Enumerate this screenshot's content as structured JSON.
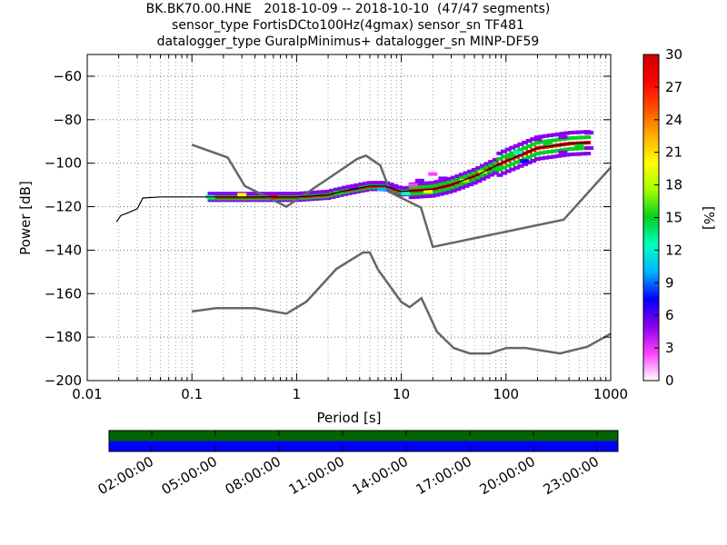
{
  "header": {
    "line1": "BK.BK70.00.HNE   2018-10-09 -- 2018-10-10  (47/47 segments)",
    "line2": "sensor_type FortisDCto100Hz(4gmax) sensor_sn TF481",
    "line3": "datalogger_type GuralpMinimus+ datalogger_sn MINP-DF59"
  },
  "chart_data": [
    {
      "type": "heatmap",
      "description_of_plot": "probabilistic power spectral density",
      "xlabel": "Period [s]",
      "ylabel": "Power [dB]",
      "xscale": "log",
      "xlim": [
        0.01,
        1000
      ],
      "ylim": [
        -200,
        -50
      ],
      "xticks": [
        {
          "value": 0.01,
          "label": "0.01"
        },
        {
          "value": 0.1,
          "label": "0.1"
        },
        {
          "value": 1,
          "label": "1"
        },
        {
          "value": 10,
          "label": "10"
        },
        {
          "value": 100,
          "label": "100"
        },
        {
          "value": 1000,
          "label": "1000"
        }
      ],
      "yticks": [
        {
          "value": -60,
          "label": "−60"
        },
        {
          "value": -80,
          "label": "−80"
        },
        {
          "value": -100,
          "label": "−100"
        },
        {
          "value": -120,
          "label": "−120"
        },
        {
          "value": -140,
          "label": "−140"
        },
        {
          "value": -160,
          "label": "−160"
        },
        {
          "value": -180,
          "label": "−180"
        },
        {
          "value": -200,
          "label": "−200"
        }
      ],
      "grid": true,
      "colorbar": {
        "label": "[%]",
        "min": 0,
        "max": 30,
        "ticks": [
          "0",
          "3",
          "6",
          "9",
          "12",
          "15",
          "18",
          "21",
          "24",
          "27",
          "30"
        ],
        "colormap": [
          "#ffffff",
          "#ff40ff",
          "#8800ee",
          "#0000ff",
          "#00b4ff",
          "#00ffc0",
          "#00d020",
          "#a0ff00",
          "#ffff00",
          "#ffb000",
          "#ff5000",
          "#ff0000",
          "#cc0000"
        ]
      },
      "reference_curves": [
        {
          "color": "#666666",
          "points": [
            [
              0.1,
              -91.5
            ],
            [
              0.22,
              -97.4
            ],
            [
              0.32,
              -110.5
            ],
            [
              0.8,
              -120
            ],
            [
              3.8,
              -98
            ],
            [
              4.6,
              -96.5
            ],
            [
              6.3,
              -101
            ],
            [
              7.9,
              -113.5
            ],
            [
              15.4,
              -120.4
            ],
            [
              20,
              -138.5
            ],
            [
              354.8,
              -126
            ],
            [
              10000,
              -48.5
            ]
          ]
        },
        {
          "color": "#666666",
          "points": [
            [
              0.1,
              -168.2
            ],
            [
              0.17,
              -166.7
            ],
            [
              0.4,
              -166.7
            ],
            [
              0.8,
              -169.2
            ],
            [
              1.24,
              -163.7
            ],
            [
              2.4,
              -148.6
            ],
            [
              4.3,
              -141.1
            ],
            [
              5,
              -141.1
            ],
            [
              6,
              -149
            ],
            [
              10,
              -163.8
            ],
            [
              12,
              -166.2
            ],
            [
              15.6,
              -162.1
            ],
            [
              21.9,
              -177.5
            ],
            [
              31.6,
              -185
            ],
            [
              45,
              -187.5
            ],
            [
              70,
              -187.5
            ],
            [
              101,
              -185
            ],
            [
              154,
              -185
            ],
            [
              328,
              -187.5
            ],
            [
              600,
              -184.4
            ],
            [
              10000,
              -151.5
            ]
          ]
        }
      ],
      "median_curve": {
        "color": "#000000",
        "points": [
          [
            0.019,
            -127
          ],
          [
            0.021,
            -124
          ],
          [
            0.024,
            -123
          ],
          [
            0.03,
            -121
          ],
          [
            0.034,
            -116
          ],
          [
            0.05,
            -115.5
          ],
          [
            0.2,
            -115.5
          ],
          [
            1.0,
            -115.5
          ],
          [
            2.0,
            -114.5
          ],
          [
            3.0,
            -112.5
          ],
          [
            5.0,
            -110.5
          ],
          [
            7.0,
            -110.5
          ],
          [
            10.0,
            -113
          ],
          [
            20.0,
            -112
          ],
          [
            30.0,
            -110
          ],
          [
            50.0,
            -106
          ],
          [
            100.0,
            -99
          ],
          [
            200.0,
            -93
          ],
          [
            400.0,
            -91
          ],
          [
            630.0,
            -90.5
          ]
        ]
      },
      "probability_bands": [
        {
          "period": 0.15,
          "power": -115.5,
          "percent": 12
        },
        {
          "period": 0.3,
          "power": -114.5,
          "percent": 20
        },
        {
          "period": 0.6,
          "power": -115.5,
          "percent": 27
        },
        {
          "period": 2.5,
          "power": -113.5,
          "percent": 15
        },
        {
          "period": 3.5,
          "power": -111.5,
          "percent": 5
        },
        {
          "period": 6.5,
          "power": -112,
          "percent": 10
        },
        {
          "period": 8.0,
          "power": -111,
          "percent": 4
        },
        {
          "period": 11.0,
          "power": -114,
          "percent": 12
        },
        {
          "period": 13.0,
          "power": -110,
          "percent": 3
        },
        {
          "period": 15.0,
          "power": -108,
          "percent": 4
        },
        {
          "period": 20.0,
          "power": -105,
          "percent": 3
        },
        {
          "period": 25.0,
          "power": -107,
          "percent": 6
        },
        {
          "period": 18.0,
          "power": -113,
          "percent": 20
        },
        {
          "period": 40.0,
          "power": -108,
          "percent": 18
        },
        {
          "period": 60.0,
          "power": -104,
          "percent": 17
        },
        {
          "period": 80.0,
          "power": -102,
          "percent": 16
        },
        {
          "period": 110.0,
          "power": -97,
          "percent": 14
        },
        {
          "period": 130.0,
          "power": -95,
          "percent": 12
        },
        {
          "period": 150.0,
          "power": -99,
          "percent": 8
        },
        {
          "period": 200.0,
          "power": -89,
          "percent": 6
        },
        {
          "period": 250.0,
          "power": -91,
          "percent": 14
        },
        {
          "period": 350.0,
          "power": -95,
          "percent": 5
        },
        {
          "period": 350.0,
          "power": -88,
          "percent": 4
        },
        {
          "period": 500.0,
          "power": -92,
          "percent": 14
        },
        {
          "period": 620.0,
          "power": -86,
          "percent": 6
        },
        {
          "period": 620.0,
          "power": -93,
          "percent": 5
        }
      ]
    },
    {
      "type": "timeline",
      "tick_labels": [
        "02:00:00",
        "05:00:00",
        "08:00:00",
        "11:00:00",
        "14:00:00",
        "17:00:00",
        "20:00:00",
        "23:00:00"
      ],
      "tracks": [
        {
          "color": "#006400",
          "coverage": [
            0,
            1
          ]
        },
        {
          "color": "#0000ff",
          "coverage": [
            0,
            1
          ]
        }
      ]
    }
  ]
}
